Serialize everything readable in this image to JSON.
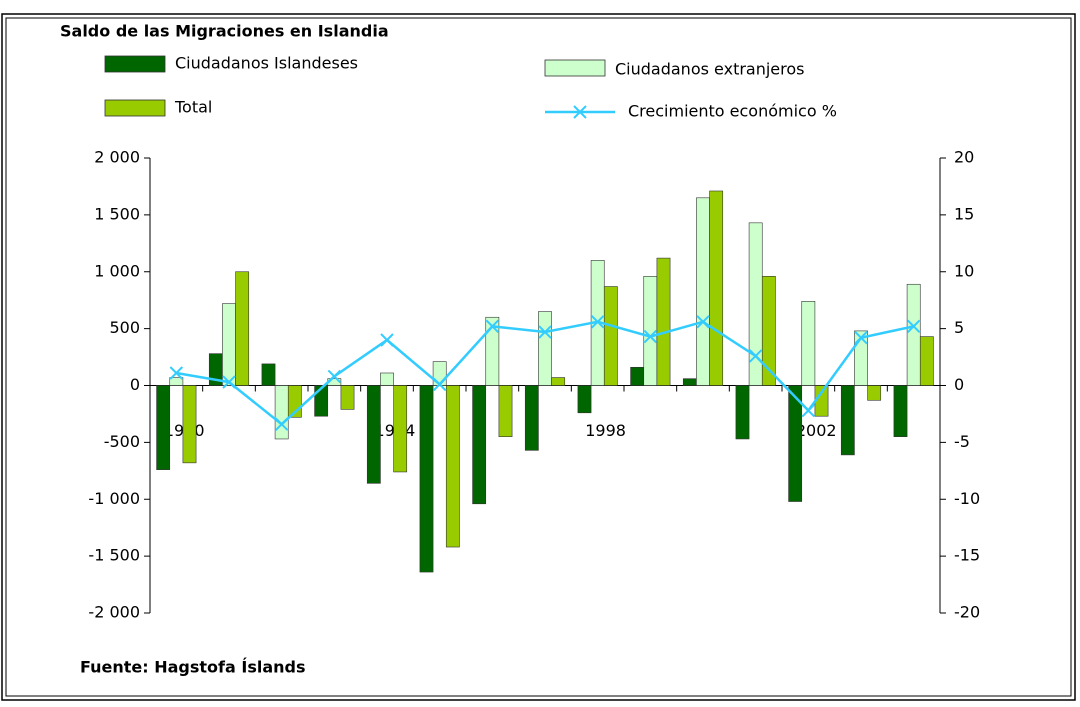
{
  "chart_data": {
    "type": "bar-line",
    "title": "Saldo de las Migraciones en Islandia",
    "source": "Fuente: Hagstofa Íslands",
    "categories": [
      "1990",
      null,
      null,
      null,
      "1994",
      null,
      null,
      null,
      "1998",
      null,
      null,
      null,
      "2002",
      null,
      null
    ],
    "series": [
      {
        "name": "Ciudadanos Islandeses",
        "color": "#006600",
        "type": "bar",
        "values": [
          -740,
          280,
          190,
          -270,
          -860,
          -1640,
          -1040,
          -570,
          -240,
          160,
          60,
          -470,
          -1020,
          -610,
          -450
        ]
      },
      {
        "name": "Ciudadanos extranjeros",
        "color": "#ccffcc",
        "type": "bar",
        "values": [
          70,
          720,
          -470,
          60,
          110,
          210,
          600,
          650,
          1100,
          960,
          1650,
          1430,
          740,
          480,
          890
        ]
      },
      {
        "name": "Total",
        "color": "#99cc00",
        "type": "bar",
        "values": [
          -680,
          1000,
          -280,
          -210,
          -760,
          -1420,
          -450,
          70,
          870,
          1120,
          1710,
          960,
          -270,
          -130,
          430
        ]
      },
      {
        "name": "Crecimiento económico %",
        "color": "#33ccff",
        "type": "line",
        "axis": "y2",
        "values": [
          1.1,
          0.3,
          -3.4,
          0.8,
          4.0,
          0.1,
          5.2,
          4.7,
          5.6,
          4.3,
          5.6,
          2.6,
          -2.2,
          4.2,
          5.2
        ]
      }
    ],
    "ylim": [
      -2000,
      2000
    ],
    "yticks": [
      {
        "value": 2000,
        "label": "2 000"
      },
      {
        "value": 1500,
        "label": "1 500"
      },
      {
        "value": 1000,
        "label": "1 000"
      },
      500,
      0,
      -500,
      {
        "value": -1000,
        "label": "-1 000"
      },
      {
        "value": -1500,
        "label": "-1 500"
      },
      {
        "value": -2000,
        "label": "-2 000"
      }
    ],
    "y2lim": [
      -20,
      20
    ],
    "y2ticks": [
      20,
      15,
      10,
      5,
      0,
      -5,
      -10,
      -15,
      -20
    ],
    "legend_position": "top",
    "grid": false
  }
}
